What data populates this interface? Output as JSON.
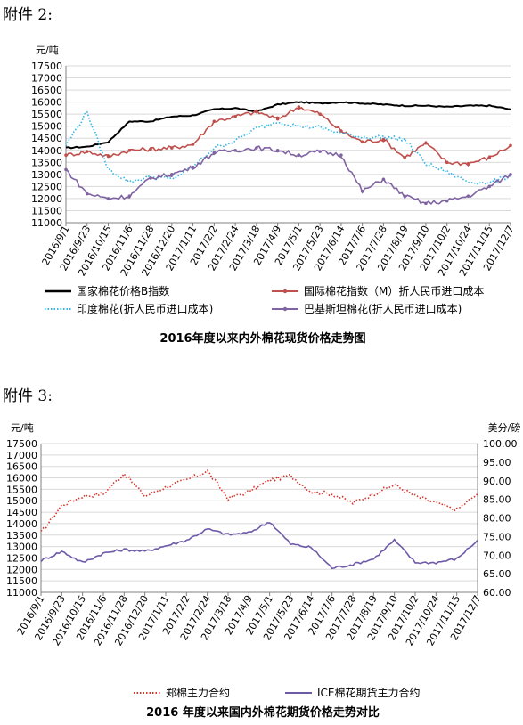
{
  "sections": [
    {
      "label": "附件 2:"
    },
    {
      "label": "附件 3:"
    }
  ],
  "chart_data": [
    {
      "type": "line",
      "title": "2016年度以来内外棉花现货价格走势图",
      "ylabel": "元/吨",
      "ylim": [
        11000,
        17500
      ],
      "ytick_step": 500,
      "x_tick_labels": [
        "2016/9/1",
        "2016/9/23",
        "2016/10/15",
        "2016/11/6",
        "2016/11/28",
        "2016/12/20",
        "2017/1/11",
        "2017/2/2",
        "2017/2/24",
        "2017/3/18",
        "2017/4/9",
        "2017/5/1",
        "2017/5/23",
        "2017/6/14",
        "2017/7/6",
        "2017/7/28",
        "2017/8/19",
        "2017/9/10",
        "2017/10/2",
        "2017/10/24",
        "2017/11/15",
        "2017/12/7"
      ],
      "legend_position": "bottom",
      "grid": true,
      "series": [
        {
          "name": "国家棉花价格B指数",
          "color": "#000000",
          "style": "solid",
          "values": [
            14100,
            14150,
            14350,
            15200,
            15200,
            15400,
            15450,
            15700,
            15750,
            15600,
            15900,
            16000,
            15950,
            16000,
            15950,
            15900,
            15850,
            15850,
            15800,
            15850,
            15850,
            15700
          ]
        },
        {
          "name": "国际棉花指数（M）折人民币进口成本",
          "color": "#c0504d",
          "style": "solid-marker",
          "values": [
            13800,
            13950,
            13750,
            14000,
            14050,
            14100,
            14250,
            15200,
            15400,
            15600,
            15300,
            15800,
            15500,
            14800,
            14350,
            14450,
            13700,
            14300,
            13500,
            13450,
            13700,
            14200
          ]
        },
        {
          "name": "印度棉花(折人民币进口成本)",
          "color": "#31b6e7",
          "style": "dotted",
          "values": [
            14200,
            15600,
            13200,
            12700,
            12900,
            12800,
            13300,
            14100,
            14400,
            14900,
            15200,
            15000,
            14950,
            14700,
            14550,
            14550,
            14450,
            13450,
            13100,
            12700,
            12650,
            12950
          ]
        },
        {
          "name": "巴基斯坦棉花(折人民币进口成本)",
          "color": "#8064a2",
          "style": "solid-marker",
          "values": [
            13200,
            12200,
            12000,
            12100,
            12850,
            13000,
            13300,
            13900,
            14000,
            14100,
            14000,
            13800,
            13950,
            13800,
            12300,
            12800,
            12100,
            11800,
            11900,
            12100,
            12500,
            13000
          ]
        }
      ]
    },
    {
      "type": "line",
      "title": "2016 年度以来国内外棉花期货价格走势对比",
      "ylabel": "元/吨",
      "y2label": "美分/磅",
      "ylim": [
        11000,
        17500
      ],
      "ytick_step": 500,
      "y2lim": [
        60,
        100
      ],
      "y2tick_step": 5,
      "x_tick_labels": [
        "2016/9/1",
        "2016/9/23",
        "2016/10/15",
        "2016/11/6",
        "2016/11/28",
        "2016/12/20",
        "2017/1/11",
        "2017/2/2",
        "2017/2/24",
        "2017/3/18",
        "2017/4/9",
        "2017/5/1",
        "2017/5/23",
        "2017/6/14",
        "2017/7/6",
        "2017/7/28",
        "2017/8/19",
        "2017/9/10",
        "2017/10/2",
        "2017/10/24",
        "2017/11/15",
        "2017/12/7"
      ],
      "legend_position": "bottom",
      "grid": true,
      "series": [
        {
          "name": "郑棉主力合约",
          "axis": "left",
          "color": "#d9342b",
          "style": "dotted",
          "values": [
            13600,
            14800,
            15200,
            15300,
            16200,
            15200,
            15600,
            15900,
            16300,
            15100,
            15400,
            15900,
            16100,
            15400,
            15300,
            14900,
            15300,
            15700,
            15200,
            14900,
            14600,
            15300
          ]
        },
        {
          "name": "ICE棉花期货主力合约",
          "axis": "right",
          "color": "#6f5aa8",
          "style": "solid",
          "values": [
            68.5,
            71,
            68,
            70.5,
            71.5,
            71,
            72.5,
            74,
            77,
            75.5,
            76,
            79,
            73,
            72,
            66.5,
            67.5,
            69,
            74,
            68,
            68,
            69,
            74
          ]
        }
      ]
    }
  ]
}
